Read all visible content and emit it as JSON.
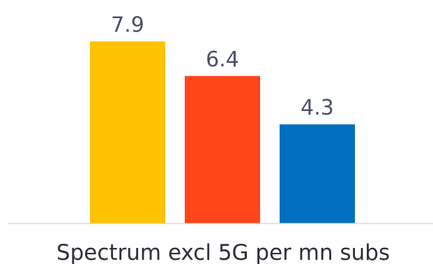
{
  "chart_data": {
    "type": "bar",
    "categories": [
      "Spectrum excl 5G per mn subs"
    ],
    "series": [
      {
        "values": [
          7.9
        ],
        "color": "#FFC200"
      },
      {
        "values": [
          6.4
        ],
        "color": "#FF4519"
      },
      {
        "values": [
          4.3
        ],
        "color": "#006FBF"
      }
    ],
    "value_labels": [
      "7.9",
      "6.4",
      "4.3"
    ],
    "xlabel": "Spectrum excl 5G per mn subs",
    "ylim": [
      0,
      9
    ],
    "grid": false,
    "legend": "none",
    "baseline_color": "#D9D9D9",
    "label_color": "#4A4F6A"
  }
}
